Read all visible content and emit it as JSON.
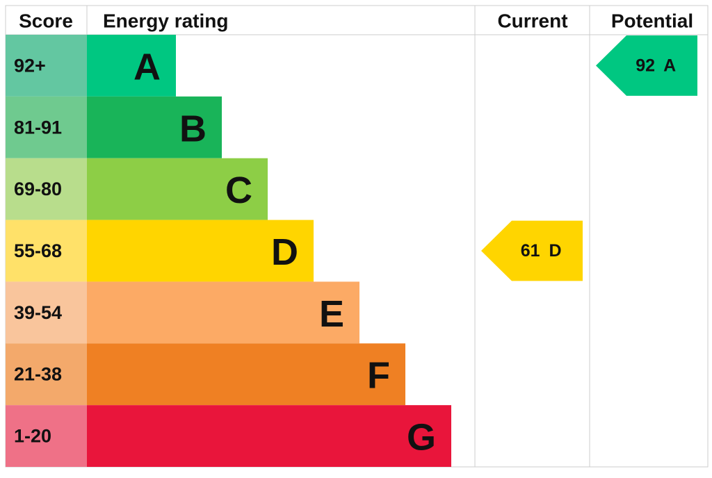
{
  "headers": {
    "score": "Score",
    "rating": "Energy rating",
    "current": "Current",
    "potential": "Potential"
  },
  "bands": [
    {
      "score": "92+",
      "letter": "A",
      "color": "#00c781",
      "light": "#63c7a1"
    },
    {
      "score": "81-91",
      "letter": "B",
      "color": "#19b459",
      "light": "#6fca8f"
    },
    {
      "score": "69-80",
      "letter": "C",
      "color": "#8dce46",
      "light": "#b8dd8c"
    },
    {
      "score": "55-68",
      "letter": "D",
      "color": "#ffd500",
      "light": "#ffe169"
    },
    {
      "score": "39-54",
      "letter": "E",
      "color": "#fcaa65",
      "light": "#f9c59c"
    },
    {
      "score": "21-38",
      "letter": "F",
      "color": "#ef8023",
      "light": "#f3a96b"
    },
    {
      "score": "1-20",
      "letter": "G",
      "color": "#e9153b",
      "light": "#ef7187"
    }
  ],
  "current": {
    "score": 61,
    "band": "D"
  },
  "potential": {
    "score": 92,
    "band": "A"
  }
}
